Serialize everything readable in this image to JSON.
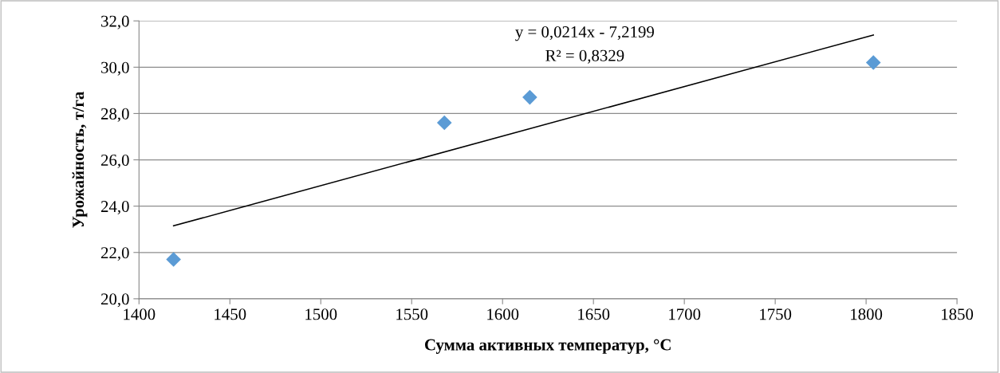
{
  "chart_data": {
    "type": "scatter",
    "xlabel": "Сумма активных температур, °C",
    "ylabel": "Урожайность, т/га",
    "series": [
      {
        "color": "#5b9bd5",
        "marker": "diamond",
        "x": [
          1419,
          1568,
          1615,
          1804
        ],
        "values": [
          21.7,
          27.6,
          28.7,
          30.2
        ]
      },
      {
        "type": "line",
        "color": "#000000",
        "marker": "none",
        "line_style": "solid",
        "x": [
          1419,
          1804
        ],
        "values": [
          23.15,
          31.39
        ]
      }
    ],
    "annotations": [
      "y = 0,0214x - 7,2199",
      "R² = 0,8329"
    ],
    "xlim": [
      1400,
      1850
    ],
    "xticks": [
      1400,
      1450,
      1500,
      1550,
      1600,
      1650,
      1700,
      1750,
      1800,
      1850
    ],
    "ylim": [
      20,
      32
    ],
    "yticks": [
      {
        "value": 20,
        "label": "20,0"
      },
      {
        "value": 22,
        "label": "22,0"
      },
      {
        "value": 24,
        "label": "24,0"
      },
      {
        "value": 26,
        "label": "26,0"
      },
      {
        "value": 28,
        "label": "28,0"
      },
      {
        "value": 30,
        "label": "30,0"
      },
      {
        "value": 32,
        "label": "32,0"
      }
    ],
    "grid": "y",
    "legend": false
  }
}
